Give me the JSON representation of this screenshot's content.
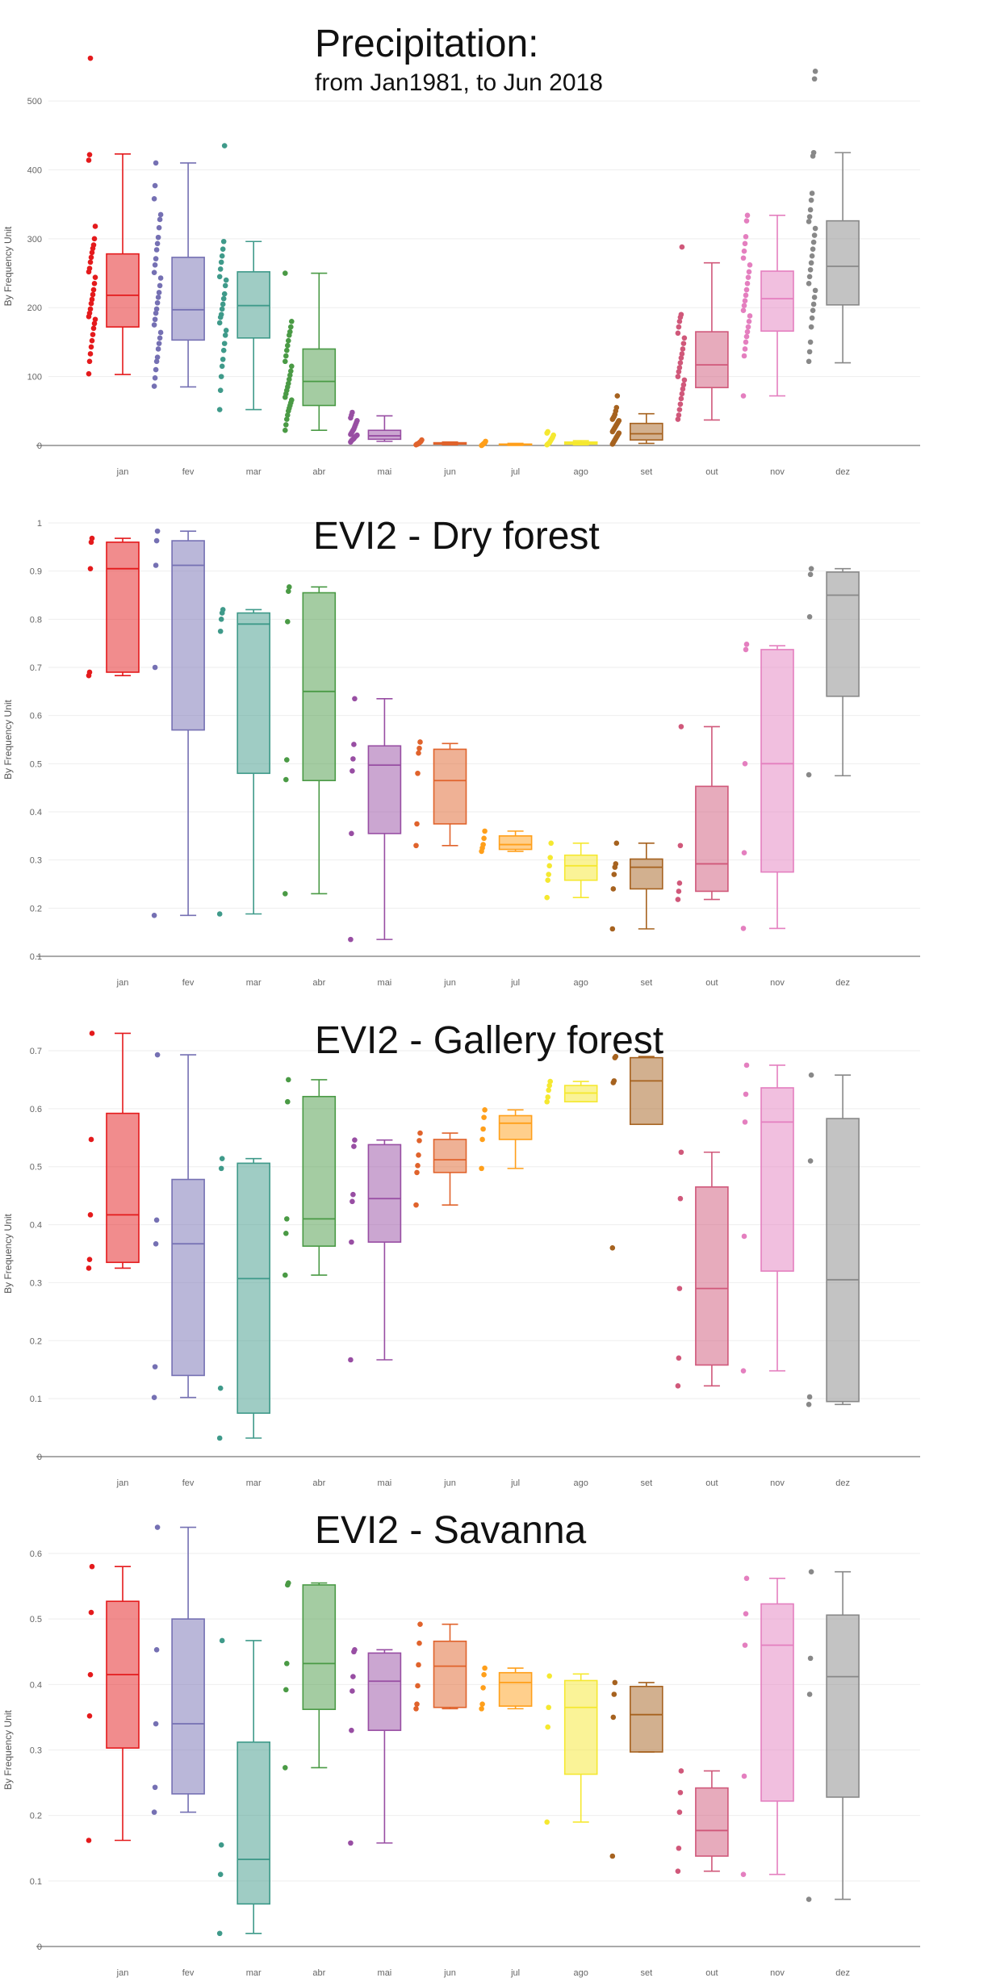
{
  "chart_data": [
    {
      "type": "box",
      "title": "Precipitation:",
      "subtitle": "from Jan1981, to Jun 2018",
      "ylabel": "By Frequency Unit",
      "ylim": [
        0,
        520
      ],
      "yticks": [
        0,
        100,
        200,
        300,
        400,
        500
      ],
      "categories": [
        "jan",
        "fev",
        "mar",
        "abr",
        "mai",
        "jun",
        "jul",
        "ago",
        "set",
        "out",
        "nov",
        "dez"
      ],
      "colors": [
        "#e41a1c",
        "#7570b3",
        "#3f9a8a",
        "#4a9a45",
        "#984ea3",
        "#e0632c",
        "#ff9f1a",
        "#f5e830",
        "#a6621f",
        "#d0587a",
        "#e47fbf",
        "#888888"
      ],
      "boxes": [
        {
          "min": 103,
          "q1": 172,
          "median": 218,
          "q3": 278,
          "max": 423,
          "points": [
            104,
            122,
            133,
            143,
            152,
            161,
            170,
            177,
            183,
            187,
            192,
            198,
            206,
            212,
            219,
            226,
            235,
            244,
            252,
            257,
            266,
            273,
            280,
            286,
            291,
            300,
            318,
            414,
            422,
            562
          ]
        },
        {
          "min": 85,
          "q1": 153,
          "median": 197,
          "q3": 273,
          "max": 410,
          "points": [
            86,
            98,
            110,
            122,
            128,
            140,
            148,
            156,
            164,
            175,
            183,
            192,
            198,
            207,
            215,
            222,
            232,
            243,
            251,
            262,
            271,
            284,
            293,
            302,
            316,
            328,
            335,
            358,
            377,
            410
          ]
        },
        {
          "min": 52,
          "q1": 156,
          "median": 203,
          "q3": 252,
          "max": 296,
          "points": [
            52,
            80,
            100,
            115,
            125,
            138,
            148,
            160,
            167,
            178,
            186,
            190,
            198,
            205,
            213,
            220,
            232,
            240,
            245,
            256,
            266,
            275,
            285,
            296,
            435
          ]
        },
        {
          "min": 22,
          "q1": 58,
          "median": 93,
          "q3": 140,
          "max": 250,
          "points": [
            22,
            30,
            38,
            44,
            50,
            54,
            58,
            62,
            66,
            70,
            75,
            80,
            85,
            90,
            96,
            102,
            108,
            115,
            122,
            130,
            138,
            145,
            152,
            160,
            165,
            172,
            180,
            250
          ]
        },
        {
          "min": 6,
          "q1": 9,
          "median": 14,
          "q3": 22,
          "max": 43,
          "points": [
            5,
            7,
            8,
            9,
            10,
            12,
            13,
            14,
            15,
            16,
            18,
            20,
            22,
            24,
            27,
            30,
            33,
            36,
            40,
            44,
            48
          ]
        },
        {
          "min": 1,
          "q1": 2,
          "median": 3,
          "q3": 4,
          "max": 5,
          "points": [
            1,
            2,
            2,
            3,
            4,
            5,
            6,
            8
          ]
        },
        {
          "min": 0,
          "q1": 1,
          "median": 1,
          "q3": 2,
          "max": 3,
          "points": [
            0,
            1,
            2,
            3,
            4,
            6
          ]
        },
        {
          "min": 1,
          "q1": 2,
          "median": 3,
          "q3": 5,
          "max": 7,
          "points": [
            1,
            2,
            3,
            4,
            6,
            8,
            10,
            12,
            15,
            18,
            20
          ]
        },
        {
          "min": 3,
          "q1": 8,
          "median": 17,
          "q3": 32,
          "max": 46,
          "points": [
            2,
            4,
            6,
            8,
            10,
            12,
            14,
            16,
            18,
            20,
            22,
            24,
            26,
            28,
            30,
            32,
            34,
            36,
            38,
            40,
            42,
            45,
            50,
            55,
            72
          ]
        },
        {
          "min": 37,
          "q1": 84,
          "median": 117,
          "q3": 165,
          "max": 265,
          "points": [
            38,
            44,
            52,
            60,
            68,
            75,
            82,
            88,
            95,
            100,
            107,
            113,
            120,
            127,
            133,
            140,
            148,
            156,
            163,
            172,
            180,
            186,
            190,
            288
          ]
        },
        {
          "min": 72,
          "q1": 166,
          "median": 213,
          "q3": 253,
          "max": 334,
          "points": [
            72,
            130,
            140,
            150,
            158,
            165,
            172,
            180,
            188,
            196,
            203,
            210,
            218,
            226,
            235,
            244,
            252,
            262,
            272,
            282,
            293,
            303,
            326,
            334
          ]
        },
        {
          "min": 120,
          "q1": 204,
          "median": 260,
          "q3": 326,
          "max": 425,
          "points": [
            122,
            136,
            150,
            172,
            185,
            196,
            205,
            215,
            225,
            235,
            245,
            255,
            265,
            275,
            285,
            295,
            305,
            315,
            325,
            332,
            342,
            356,
            366,
            420,
            425,
            532,
            543
          ]
        }
      ]
    },
    {
      "type": "box",
      "title": "EVI2 - Dry forest",
      "ylabel": "By Frequency Unit",
      "ylim": [
        0.1,
        1.0
      ],
      "yticks": [
        "0.1",
        "0.2",
        "0.3",
        "0.4",
        "0.5",
        "0.6",
        "0.7",
        "0.8",
        "0.9",
        "1"
      ],
      "categories": [
        "jan",
        "fev",
        "mar",
        "abr",
        "mai",
        "jun",
        "jul",
        "ago",
        "set",
        "out",
        "nov",
        "dez"
      ],
      "colors": [
        "#e41a1c",
        "#7570b3",
        "#3f9a8a",
        "#4a9a45",
        "#984ea3",
        "#e0632c",
        "#ff9f1a",
        "#f5e830",
        "#a6621f",
        "#d0587a",
        "#e47fbf",
        "#888888"
      ],
      "boxes": [
        {
          "min": 0.683,
          "q1": 0.69,
          "median": 0.905,
          "q3": 0.96,
          "max": 0.968,
          "points": [
            0.683,
            0.69,
            0.905,
            0.96,
            0.968
          ]
        },
        {
          "min": 0.185,
          "q1": 0.57,
          "median": 0.912,
          "q3": 0.963,
          "max": 0.983,
          "points": [
            0.185,
            0.7,
            0.912,
            0.963,
            0.983
          ]
        },
        {
          "min": 0.188,
          "q1": 0.48,
          "median": 0.79,
          "q3": 0.813,
          "max": 0.82,
          "points": [
            0.188,
            0.775,
            0.8,
            0.813,
            0.82
          ]
        },
        {
          "min": 0.23,
          "q1": 0.465,
          "median": 0.65,
          "q3": 0.855,
          "max": 0.867,
          "points": [
            0.23,
            0.467,
            0.508,
            0.795,
            0.858,
            0.867
          ]
        },
        {
          "min": 0.135,
          "q1": 0.355,
          "median": 0.497,
          "q3": 0.537,
          "max": 0.635,
          "points": [
            0.135,
            0.355,
            0.485,
            0.51,
            0.54,
            0.635
          ]
        },
        {
          "min": 0.33,
          "q1": 0.375,
          "median": 0.465,
          "q3": 0.53,
          "max": 0.542,
          "points": [
            0.33,
            0.375,
            0.48,
            0.522,
            0.532,
            0.545
          ]
        },
        {
          "min": 0.318,
          "q1": 0.322,
          "median": 0.332,
          "q3": 0.35,
          "max": 0.36,
          "points": [
            0.318,
            0.325,
            0.332,
            0.345,
            0.36
          ]
        },
        {
          "min": 0.222,
          "q1": 0.258,
          "median": 0.288,
          "q3": 0.31,
          "max": 0.335,
          "points": [
            0.222,
            0.258,
            0.27,
            0.288,
            0.305,
            0.335
          ]
        },
        {
          "min": 0.157,
          "q1": 0.24,
          "median": 0.285,
          "q3": 0.302,
          "max": 0.335,
          "points": [
            0.157,
            0.24,
            0.27,
            0.285,
            0.292,
            0.335
          ]
        },
        {
          "min": 0.218,
          "q1": 0.235,
          "median": 0.292,
          "q3": 0.453,
          "max": 0.577,
          "points": [
            0.218,
            0.235,
            0.252,
            0.33,
            0.577
          ]
        },
        {
          "min": 0.158,
          "q1": 0.275,
          "median": 0.5,
          "q3": 0.737,
          "max": 0.745,
          "points": [
            0.158,
            0.315,
            0.5,
            0.737,
            0.748
          ]
        },
        {
          "min": 0.475,
          "q1": 0.64,
          "median": 0.85,
          "q3": 0.898,
          "max": 0.905,
          "points": [
            0.477,
            0.805,
            0.893,
            0.905
          ]
        }
      ]
    },
    {
      "type": "box",
      "title": "EVI2 - Gallery forest",
      "ylabel": "By Frequency Unit",
      "ylim": [
        0.0,
        0.7
      ],
      "yticks": [
        "0",
        "0.1",
        "0.2",
        "0.3",
        "0.4",
        "0.5",
        "0.6",
        "0.7"
      ],
      "categories": [
        "jan",
        "fev",
        "mar",
        "abr",
        "mai",
        "jun",
        "jul",
        "ago",
        "set",
        "out",
        "nov",
        "dez"
      ],
      "colors": [
        "#e41a1c",
        "#7570b3",
        "#3f9a8a",
        "#4a9a45",
        "#984ea3",
        "#e0632c",
        "#ff9f1a",
        "#f5e830",
        "#a6621f",
        "#d0587a",
        "#e47fbf",
        "#888888"
      ],
      "boxes": [
        {
          "min": 0.325,
          "q1": 0.335,
          "median": 0.417,
          "q3": 0.592,
          "max": 0.73,
          "points": [
            0.325,
            0.34,
            0.417,
            0.547,
            0.73
          ]
        },
        {
          "min": 0.102,
          "q1": 0.14,
          "median": 0.367,
          "q3": 0.478,
          "max": 0.693,
          "points": [
            0.102,
            0.155,
            0.367,
            0.408,
            0.693
          ]
        },
        {
          "min": 0.032,
          "q1": 0.075,
          "median": 0.307,
          "q3": 0.506,
          "max": 0.514,
          "points": [
            0.032,
            0.118,
            0.497,
            0.514
          ]
        },
        {
          "min": 0.313,
          "q1": 0.363,
          "median": 0.41,
          "q3": 0.621,
          "max": 0.65,
          "points": [
            0.313,
            0.385,
            0.41,
            0.612,
            0.65
          ]
        },
        {
          "min": 0.167,
          "q1": 0.37,
          "median": 0.445,
          "q3": 0.538,
          "max": 0.546,
          "points": [
            0.167,
            0.37,
            0.44,
            0.452,
            0.535,
            0.546
          ]
        },
        {
          "min": 0.434,
          "q1": 0.49,
          "median": 0.512,
          "q3": 0.547,
          "max": 0.558,
          "points": [
            0.434,
            0.49,
            0.502,
            0.52,
            0.545,
            0.558
          ]
        },
        {
          "min": 0.497,
          "q1": 0.547,
          "median": 0.575,
          "q3": 0.588,
          "max": 0.598,
          "points": [
            0.497,
            0.547,
            0.565,
            0.585,
            0.598
          ]
        },
        {
          "min": 0.612,
          "q1": 0.612,
          "median": 0.627,
          "q3": 0.64,
          "max": 0.647,
          "points": [
            0.612,
            0.62,
            0.632,
            0.64,
            0.647
          ]
        },
        {
          "min": 0.573,
          "q1": 0.573,
          "median": 0.648,
          "q3": 0.688,
          "max": 0.69,
          "points": [
            0.36,
            0.645,
            0.648,
            0.688,
            0.69
          ]
        },
        {
          "min": 0.122,
          "q1": 0.158,
          "median": 0.29,
          "q3": 0.465,
          "max": 0.525,
          "points": [
            0.122,
            0.17,
            0.29,
            0.445,
            0.525
          ]
        },
        {
          "min": 0.148,
          "q1": 0.32,
          "median": 0.577,
          "q3": 0.636,
          "max": 0.675,
          "points": [
            0.148,
            0.38,
            0.577,
            0.625,
            0.675
          ]
        },
        {
          "min": 0.09,
          "q1": 0.095,
          "median": 0.305,
          "q3": 0.583,
          "max": 0.658,
          "points": [
            0.09,
            0.103,
            0.51,
            0.658
          ]
        }
      ]
    },
    {
      "type": "box",
      "title": "EVI2 - Savanna",
      "ylabel": "By Frequency Unit",
      "ylim": [
        0.0,
        0.6
      ],
      "yticks": [
        "0",
        "0.1",
        "0.2",
        "0.3",
        "0.4",
        "0.5",
        "0.6"
      ],
      "categories": [
        "jan",
        "fev",
        "mar",
        "abr",
        "mai",
        "jun",
        "jul",
        "ago",
        "set",
        "out",
        "nov",
        "dez"
      ],
      "colors": [
        "#e41a1c",
        "#7570b3",
        "#3f9a8a",
        "#4a9a45",
        "#984ea3",
        "#e0632c",
        "#ff9f1a",
        "#f5e830",
        "#a6621f",
        "#d0587a",
        "#e47fbf",
        "#888888"
      ],
      "boxes": [
        {
          "min": 0.162,
          "q1": 0.303,
          "median": 0.415,
          "q3": 0.527,
          "max": 0.58,
          "points": [
            0.162,
            0.352,
            0.415,
            0.51,
            0.58
          ]
        },
        {
          "min": 0.205,
          "q1": 0.233,
          "median": 0.34,
          "q3": 0.5,
          "max": 0.64,
          "points": [
            0.205,
            0.243,
            0.34,
            0.453,
            0.64
          ]
        },
        {
          "min": 0.02,
          "q1": 0.065,
          "median": 0.133,
          "q3": 0.312,
          "max": 0.467,
          "points": [
            0.02,
            0.11,
            0.155,
            0.467
          ]
        },
        {
          "min": 0.273,
          "q1": 0.362,
          "median": 0.432,
          "q3": 0.552,
          "max": 0.555,
          "points": [
            0.273,
            0.392,
            0.432,
            0.552,
            0.555
          ]
        },
        {
          "min": 0.158,
          "q1": 0.33,
          "median": 0.405,
          "q3": 0.448,
          "max": 0.453,
          "points": [
            0.158,
            0.33,
            0.39,
            0.412,
            0.45,
            0.453
          ]
        },
        {
          "min": 0.363,
          "q1": 0.365,
          "median": 0.428,
          "q3": 0.466,
          "max": 0.492,
          "points": [
            0.363,
            0.37,
            0.398,
            0.43,
            0.463,
            0.492
          ]
        },
        {
          "min": 0.363,
          "q1": 0.367,
          "median": 0.403,
          "q3": 0.418,
          "max": 0.425,
          "points": [
            0.363,
            0.37,
            0.395,
            0.415,
            0.425
          ]
        },
        {
          "min": 0.19,
          "q1": 0.263,
          "median": 0.365,
          "q3": 0.406,
          "max": 0.416,
          "points": [
            0.19,
            0.335,
            0.365,
            0.413
          ]
        },
        {
          "min": 0.297,
          "q1": 0.297,
          "median": 0.354,
          "q3": 0.397,
          "max": 0.403,
          "points": [
            0.138,
            0.35,
            0.385,
            0.403
          ]
        },
        {
          "min": 0.115,
          "q1": 0.138,
          "median": 0.177,
          "q3": 0.242,
          "max": 0.268,
          "points": [
            0.115,
            0.15,
            0.205,
            0.235,
            0.268
          ]
        },
        {
          "min": 0.11,
          "q1": 0.222,
          "median": 0.46,
          "q3": 0.523,
          "max": 0.562,
          "points": [
            0.11,
            0.26,
            0.46,
            0.508,
            0.562
          ]
        },
        {
          "min": 0.072,
          "q1": 0.228,
          "median": 0.412,
          "q3": 0.506,
          "max": 0.572,
          "points": [
            0.072,
            0.385,
            0.44,
            0.572
          ]
        }
      ]
    }
  ]
}
